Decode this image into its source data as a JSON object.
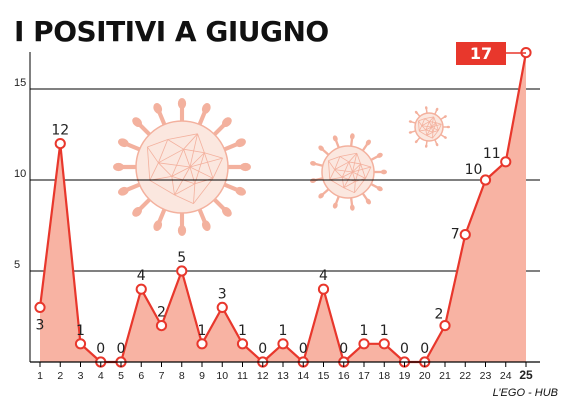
{
  "chart_data": {
    "type": "area",
    "title": "I POSITIVI A GIUGNO",
    "categories": [
      "1",
      "2",
      "3",
      "4",
      "5",
      "6",
      "7",
      "8",
      "9",
      "10",
      "11",
      "12",
      "13",
      "14",
      "15",
      "16",
      "17",
      "18",
      "19",
      "20",
      "21",
      "22",
      "23",
      "24",
      "25"
    ],
    "values": [
      3,
      12,
      1,
      0,
      0,
      4,
      2,
      5,
      1,
      3,
      1,
      0,
      1,
      0,
      4,
      0,
      1,
      1,
      0,
      0,
      2,
      7,
      10,
      11,
      17
    ],
    "yticks": [
      "5",
      "10",
      "15"
    ],
    "ylim": [
      0,
      18
    ],
    "highlight_label": "17",
    "credit": "L’EGO - HUB",
    "colors": {
      "fill": "#f8b3a3",
      "line": "#e8372c",
      "highlight": "#e8372c"
    },
    "grid": "horizontal"
  }
}
